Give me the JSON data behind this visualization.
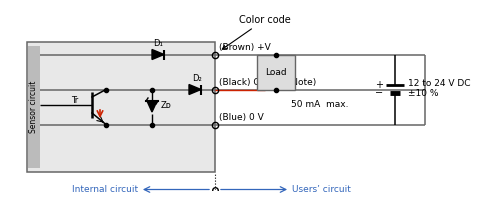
{
  "bg_color": "#ffffff",
  "line_color": "#666666",
  "blue_color": "#3366bb",
  "red_color": "#cc2200",
  "title": "Color code",
  "vplus_label": "(Brown) +V",
  "output_label": "(Black) Output (Note)",
  "gnd_label": "(Blue) 0 V",
  "current_label": "50 mA  max.",
  "voltage_label": "12 to 24 V DC",
  "voltage_label2": "±10 %",
  "load_label": "Load",
  "tr_label": "Tr",
  "d1_label": "D₁",
  "d2_label": "D₂",
  "zd_label": "Zᴅ",
  "internal_label": "Internal circuit",
  "users_label": "Users’ circuit"
}
